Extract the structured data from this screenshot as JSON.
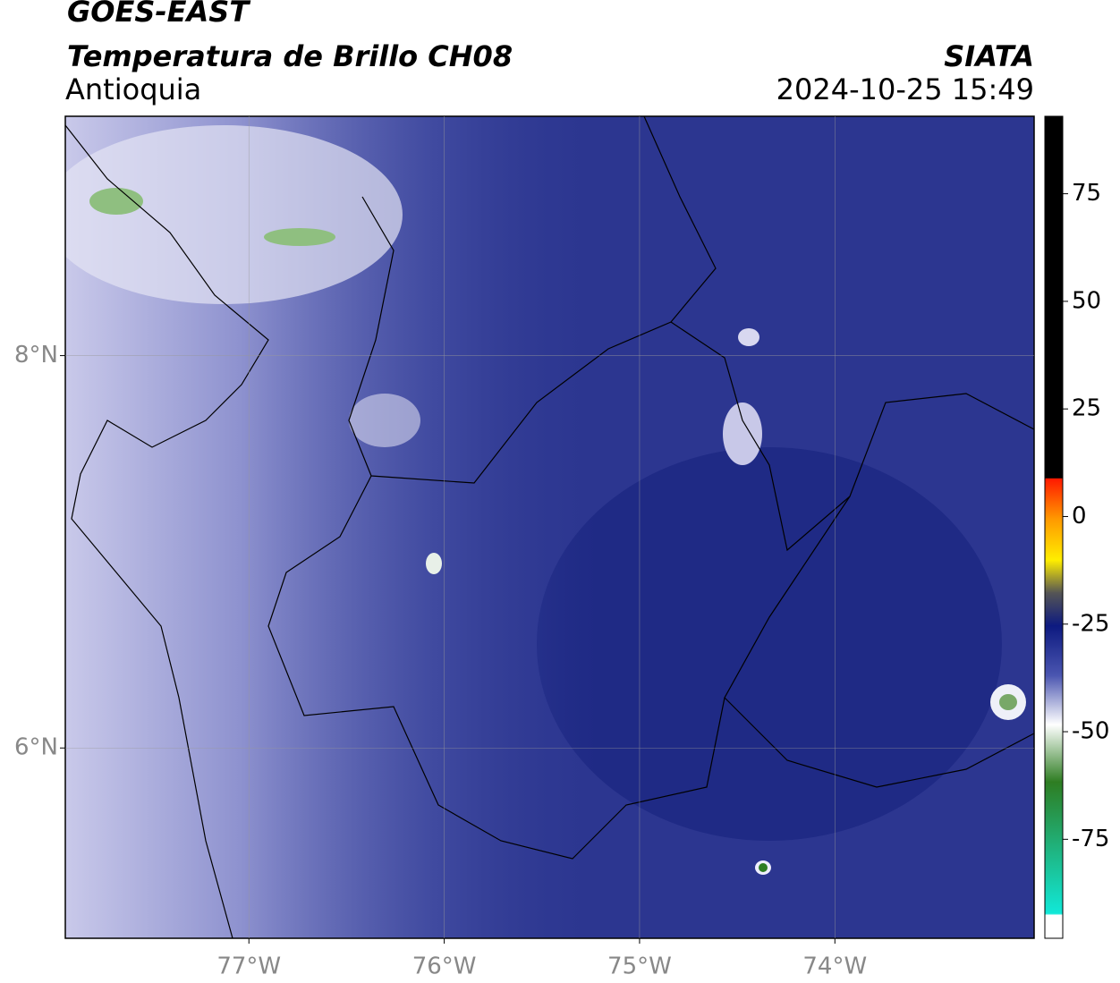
{
  "header": {
    "title": "GOES-EAST",
    "subtitle": "Temperatura de Brillo CH08",
    "region": "Antioquia",
    "source": "SIATA",
    "timestamp": "2024-10-25 15:49"
  },
  "map": {
    "xlim": [
      -77.94,
      -72.98
    ],
    "ylim": [
      5.03,
      9.22
    ],
    "xticks": [
      {
        "value": -77,
        "label": "77°W"
      },
      {
        "value": -76,
        "label": "76°W"
      },
      {
        "value": -75,
        "label": "75°W"
      },
      {
        "value": -74,
        "label": "74°W"
      }
    ],
    "yticks": [
      {
        "value": 6,
        "label": "6°N"
      },
      {
        "value": 8,
        "label": "8°N"
      }
    ],
    "grid": true
  },
  "colorbar": {
    "lim": [
      -98,
      93
    ],
    "ticks": [
      -75,
      -50,
      -25,
      0,
      25,
      50,
      75
    ]
  }
}
